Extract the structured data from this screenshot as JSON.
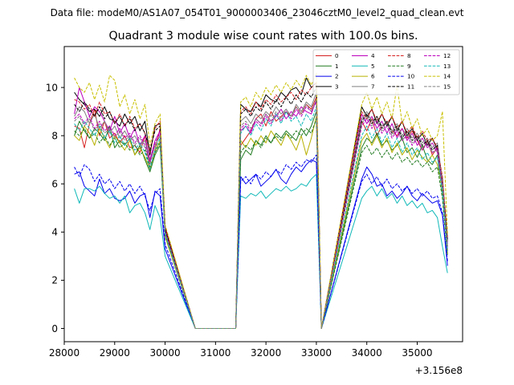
{
  "suptitle": "Data file: modeM0/AS1A07_054T01_9000003406_23046cztM0_level2_quad_clean.evt",
  "chart_data": {
    "type": "line",
    "title": "Quadrant 3 module wise count rates with 100.0s bins.",
    "xlabel": "",
    "ylabel": "",
    "x_offset_label": "+3.156e8",
    "xlim": [
      28000,
      35900
    ],
    "ylim": [
      -0.55,
      11.7
    ],
    "xticks": [
      28000,
      29000,
      30000,
      31000,
      32000,
      33000,
      34000,
      35000
    ],
    "yticks": [
      0,
      2,
      4,
      6,
      8,
      10
    ],
    "grid": false,
    "legend_location": "top-right",
    "segments": [
      {
        "start": 28200,
        "step": 100,
        "n": 19
      },
      {
        "start": 30600,
        "step": 100,
        "n": 1
      },
      {
        "start": 31400,
        "step": 100,
        "n": 18
      },
      {
        "start": 33100,
        "step": 100,
        "n": 1
      },
      {
        "start": 33900,
        "step": 100,
        "n": 18
      }
    ],
    "note": "Each series lists one value per time bin, concatenated across segments (19 + 1 + 18 + 1 + 18 = 57 bins). Values are read approximately from the plot.",
    "series": [
      {
        "name": "0",
        "color": "#d62020",
        "dash": false,
        "values": [
          8.4,
          8.3,
          7.5,
          8.5,
          9.1,
          8.0,
          8.6,
          7.9,
          8.1,
          7.7,
          8.0,
          7.5,
          7.6,
          7.3,
          8.0,
          6.6,
          7.4,
          8.3,
          4.0,
          0.0,
          0.0,
          7.6,
          7.9,
          8.2,
          8.7,
          8.9,
          8.4,
          9.0,
          8.6,
          8.8,
          9.0,
          8.8,
          9.2,
          8.9,
          9.3,
          9.1,
          9.6,
          0.0,
          0.0,
          8.6,
          8.2,
          8.7,
          8.0,
          8.4,
          8.6,
          8.2,
          8.0,
          8.3,
          7.9,
          8.2,
          7.8,
          7.4,
          7.8,
          7.2,
          7.5,
          5.8,
          3.2
        ]
      },
      {
        "name": "1",
        "color": "#207a20",
        "dash": false,
        "values": [
          8.0,
          8.6,
          8.2,
          7.9,
          8.3,
          8.1,
          7.8,
          8.4,
          7.5,
          7.8,
          7.6,
          7.9,
          7.2,
          7.6,
          7.0,
          6.5,
          7.2,
          7.6,
          4.0,
          0.0,
          0.0,
          7.0,
          7.4,
          7.2,
          7.8,
          7.6,
          8.0,
          7.7,
          8.1,
          7.9,
          8.2,
          8.0,
          7.8,
          8.3,
          8.0,
          8.4,
          9.0,
          0.0,
          0.0,
          7.5,
          7.9,
          7.7,
          8.1,
          7.6,
          7.8,
          7.4,
          7.6,
          7.9,
          7.3,
          7.5,
          7.1,
          7.6,
          7.0,
          6.8,
          7.2,
          5.6,
          3.4
        ]
      },
      {
        "name": "2",
        "color": "#0000ee",
        "dash": false,
        "values": [
          6.4,
          6.5,
          5.9,
          5.7,
          5.5,
          6.2,
          5.6,
          5.8,
          5.4,
          5.3,
          5.4,
          5.7,
          5.2,
          5.5,
          5.6,
          4.6,
          5.7,
          5.5,
          3.3,
          0.0,
          0.0,
          6.3,
          6.0,
          6.2,
          6.4,
          5.9,
          6.1,
          6.3,
          6.6,
          6.2,
          6.0,
          6.4,
          6.7,
          6.5,
          6.8,
          7.0,
          6.9,
          0.0,
          0.0,
          6.2,
          6.7,
          6.4,
          5.9,
          6.0,
          5.5,
          5.7,
          5.4,
          5.6,
          5.9,
          5.5,
          5.3,
          5.6,
          5.4,
          5.2,
          5.3,
          4.7,
          2.6
        ]
      },
      {
        "name": "3",
        "color": "#000000",
        "dash": false,
        "values": [
          9.8,
          9.5,
          9.3,
          9.0,
          9.1,
          8.8,
          9.2,
          8.7,
          8.6,
          8.4,
          8.9,
          8.5,
          8.8,
          8.2,
          8.6,
          7.2,
          8.4,
          8.5,
          4.2,
          0.0,
          0.0,
          9.3,
          9.1,
          9.0,
          9.4,
          9.2,
          9.7,
          9.5,
          9.4,
          9.8,
          9.6,
          9.9,
          10.0,
          9.7,
          10.4,
          10.0,
          10.2,
          0.0,
          0.0,
          9.2,
          8.8,
          9.1,
          8.5,
          8.9,
          8.4,
          8.8,
          8.2,
          8.6,
          8.0,
          8.3,
          7.8,
          8.1,
          7.6,
          7.9,
          7.4,
          6.2,
          3.6
        ]
      },
      {
        "name": "4",
        "color": "#bb00bb",
        "dash": false,
        "values": [
          8.9,
          10.0,
          9.4,
          8.8,
          9.2,
          9.0,
          8.6,
          8.2,
          8.8,
          8.1,
          8.5,
          7.9,
          8.3,
          7.6,
          8.0,
          7.0,
          7.8,
          8.2,
          4.1,
          0.0,
          0.0,
          8.2,
          8.4,
          8.1,
          8.7,
          8.5,
          8.9,
          8.6,
          8.8,
          9.1,
          8.7,
          9.0,
          8.8,
          9.2,
          9.0,
          8.9,
          9.5,
          0.0,
          0.0,
          8.9,
          8.5,
          8.8,
          8.3,
          8.6,
          8.1,
          8.5,
          7.9,
          8.3,
          7.8,
          8.1,
          7.6,
          7.9,
          7.5,
          7.7,
          7.3,
          6.0,
          3.3
        ]
      },
      {
        "name": "5",
        "color": "#10b8b8",
        "dash": false,
        "values": [
          5.8,
          5.2,
          5.8,
          5.8,
          5.7,
          5.9,
          5.6,
          5.4,
          5.5,
          5.2,
          5.5,
          4.8,
          5.1,
          5.2,
          4.8,
          4.1,
          5.1,
          4.6,
          3.0,
          0.0,
          0.0,
          5.5,
          5.4,
          5.6,
          5.5,
          5.7,
          5.4,
          5.6,
          5.8,
          5.7,
          5.9,
          5.7,
          5.8,
          6.0,
          5.9,
          6.2,
          6.4,
          0.0,
          0.0,
          5.4,
          5.7,
          5.9,
          5.5,
          5.8,
          5.4,
          5.6,
          5.2,
          5.5,
          5.1,
          5.3,
          5.0,
          5.2,
          4.8,
          4.9,
          4.6,
          3.4,
          2.3
        ]
      },
      {
        "name": "6",
        "color": "#b8b000",
        "dash": false,
        "values": [
          8.0,
          7.8,
          8.4,
          8.1,
          7.6,
          8.3,
          7.9,
          7.5,
          8.0,
          7.7,
          7.4,
          7.8,
          7.2,
          7.5,
          7.1,
          6.6,
          7.3,
          7.8,
          3.8,
          0.0,
          0.0,
          7.8,
          7.5,
          7.9,
          7.6,
          8.0,
          7.7,
          8.2,
          7.9,
          7.6,
          8.1,
          7.8,
          7.4,
          8.0,
          7.2,
          7.9,
          8.8,
          0.0,
          0.0,
          7.8,
          8.1,
          7.6,
          8.0,
          7.5,
          7.9,
          7.3,
          7.7,
          7.2,
          7.5,
          7.0,
          7.4,
          7.1,
          6.9,
          7.2,
          6.8,
          5.8,
          3.1
        ]
      },
      {
        "name": "7",
        "color": "#808080",
        "dash": false,
        "values": [
          8.8,
          9.2,
          9.0,
          8.5,
          8.9,
          8.3,
          8.6,
          8.1,
          8.4,
          7.9,
          8.2,
          7.8,
          8.0,
          7.6,
          7.8,
          6.9,
          7.6,
          8.0,
          4.0,
          0.0,
          0.0,
          8.6,
          8.8,
          8.5,
          8.9,
          8.7,
          9.0,
          8.8,
          9.2,
          8.9,
          9.1,
          8.8,
          9.3,
          9.0,
          9.4,
          9.2,
          9.8,
          0.0,
          0.0,
          8.7,
          9.0,
          8.6,
          8.8,
          8.4,
          8.6,
          8.2,
          8.5,
          8.0,
          8.3,
          7.9,
          8.1,
          7.7,
          7.9,
          7.5,
          7.7,
          6.1,
          3.5
        ]
      },
      {
        "name": "8",
        "color": "#d62020",
        "dash": true,
        "values": [
          9.5,
          9.4,
          9.1,
          9.3,
          8.8,
          9.4,
          8.9,
          9.0,
          8.5,
          8.9,
          8.4,
          8.8,
          8.3,
          8.5,
          8.1,
          7.3,
          8.3,
          8.6,
          4.2,
          0.0,
          0.0,
          9.0,
          9.2,
          8.9,
          9.4,
          9.1,
          9.5,
          9.3,
          9.7,
          9.4,
          9.6,
          9.8,
          9.5,
          9.9,
          9.7,
          10.0,
          10.2,
          0.0,
          0.0,
          9.0,
          8.7,
          9.1,
          8.6,
          8.9,
          8.5,
          8.8,
          8.3,
          8.6,
          8.1,
          8.4,
          7.9,
          8.2,
          7.8,
          7.9,
          7.5,
          6.3,
          3.8
        ]
      },
      {
        "name": "9",
        "color": "#207a20",
        "dash": true,
        "values": [
          8.2,
          8.0,
          8.3,
          7.9,
          8.1,
          7.7,
          8.0,
          7.6,
          7.9,
          7.5,
          7.7,
          7.4,
          7.6,
          7.2,
          7.4,
          6.7,
          7.3,
          7.7,
          3.9,
          0.0,
          0.0,
          7.3,
          7.6,
          7.4,
          7.8,
          7.5,
          7.9,
          7.7,
          8.0,
          7.8,
          8.1,
          7.9,
          8.2,
          8.0,
          8.3,
          8.1,
          8.7,
          0.0,
          0.0,
          7.3,
          7.6,
          7.2,
          7.5,
          7.1,
          7.4,
          7.0,
          7.3,
          6.9,
          7.1,
          6.8,
          7.0,
          6.7,
          6.9,
          6.5,
          6.7,
          5.4,
          3.0
        ]
      },
      {
        "name": "10",
        "color": "#0000ee",
        "dash": true,
        "values": [
          6.7,
          6.3,
          6.8,
          6.6,
          6.1,
          6.4,
          6.0,
          6.2,
          5.8,
          6.1,
          5.7,
          6.0,
          5.6,
          5.9,
          5.5,
          4.9,
          5.6,
          5.8,
          3.5,
          0.0,
          0.0,
          6.1,
          6.3,
          6.0,
          6.4,
          6.2,
          6.5,
          6.3,
          6.6,
          6.4,
          6.8,
          6.6,
          6.9,
          6.7,
          7.0,
          6.9,
          7.2,
          0.0,
          0.0,
          6.1,
          6.4,
          6.0,
          6.3,
          5.9,
          6.2,
          5.8,
          6.0,
          5.7,
          5.9,
          5.6,
          5.8,
          5.5,
          5.7,
          5.4,
          5.5,
          4.8,
          2.8
        ]
      },
      {
        "name": "11",
        "color": "#000000",
        "dash": true,
        "values": [
          9.3,
          9.0,
          9.4,
          9.1,
          8.8,
          9.2,
          8.7,
          9.0,
          8.5,
          8.8,
          8.4,
          8.7,
          8.2,
          8.5,
          8.1,
          7.4,
          8.2,
          8.4,
          4.1,
          0.0,
          0.0,
          8.9,
          9.1,
          8.8,
          9.2,
          9.0,
          9.4,
          9.1,
          9.5,
          9.2,
          9.6,
          9.3,
          9.7,
          9.4,
          9.8,
          9.6,
          10.0,
          0.0,
          0.0,
          8.6,
          8.9,
          8.5,
          8.8,
          8.3,
          8.6,
          8.1,
          8.4,
          7.9,
          8.2,
          7.8,
          8.0,
          7.6,
          7.8,
          7.4,
          7.6,
          6.0,
          3.7
        ]
      },
      {
        "name": "12",
        "color": "#bb00bb",
        "dash": true,
        "values": [
          8.7,
          8.9,
          8.5,
          8.8,
          8.3,
          8.6,
          8.2,
          8.4,
          8.0,
          8.3,
          7.9,
          8.1,
          7.7,
          8.0,
          7.6,
          6.9,
          7.7,
          8.1,
          4.0,
          0.0,
          0.0,
          8.3,
          8.5,
          8.2,
          8.6,
          8.4,
          8.8,
          8.5,
          8.9,
          8.6,
          9.0,
          8.7,
          9.1,
          8.8,
          9.2,
          9.0,
          9.4,
          0.0,
          0.0,
          8.4,
          8.7,
          8.3,
          8.6,
          8.1,
          8.4,
          7.9,
          8.2,
          7.8,
          8.0,
          7.6,
          7.9,
          7.4,
          7.7,
          7.3,
          7.5,
          5.9,
          3.4
        ]
      },
      {
        "name": "13",
        "color": "#10b8b8",
        "dash": true,
        "values": [
          8.5,
          8.2,
          8.6,
          8.3,
          8.0,
          8.4,
          7.9,
          8.2,
          7.7,
          8.0,
          7.6,
          7.9,
          7.4,
          7.7,
          7.3,
          6.6,
          7.4,
          7.9,
          3.9,
          0.0,
          0.0,
          8.1,
          8.4,
          8.0,
          8.5,
          8.2,
          8.7,
          8.4,
          8.9,
          8.5,
          9.0,
          8.6,
          8.8,
          8.4,
          8.9,
          8.6,
          9.2,
          0.0,
          0.0,
          8.0,
          8.4,
          7.9,
          8.3,
          7.7,
          8.1,
          7.5,
          7.9,
          7.3,
          7.7,
          7.2,
          7.5,
          7.0,
          7.3,
          6.9,
          7.1,
          5.7,
          3.2
        ]
      },
      {
        "name": "14",
        "color": "#c8c000",
        "dash": true,
        "values": [
          10.4,
          10.0,
          9.8,
          10.2,
          9.5,
          10.1,
          9.4,
          10.5,
          10.3,
          9.2,
          9.7,
          8.9,
          9.5,
          8.7,
          9.3,
          7.6,
          8.5,
          8.9,
          4.3,
          0.0,
          0.0,
          9.4,
          9.6,
          9.2,
          9.8,
          9.5,
          10.0,
          9.7,
          10.1,
          9.8,
          10.2,
          9.9,
          10.3,
          10.0,
          10.5,
          10.1,
          10.6,
          0.0,
          0.0,
          9.3,
          9.8,
          9.1,
          9.6,
          8.9,
          9.4,
          8.7,
          10.1,
          8.5,
          9.0,
          8.3,
          8.7,
          8.0,
          8.3,
          7.8,
          8.0,
          9.0,
          3.9
        ]
      },
      {
        "name": "15",
        "color": "#808080",
        "dash": true,
        "values": [
          8.6,
          8.8,
          8.4,
          8.7,
          8.2,
          8.5,
          8.1,
          8.3,
          7.9,
          8.2,
          7.8,
          8.0,
          7.6,
          7.9,
          7.5,
          6.8,
          7.6,
          8.0,
          4.0,
          0.0,
          0.0,
          8.4,
          8.6,
          8.3,
          8.7,
          8.5,
          8.9,
          8.6,
          9.0,
          8.7,
          9.1,
          8.8,
          9.2,
          8.9,
          9.3,
          9.0,
          9.5,
          0.0,
          0.0,
          8.5,
          8.8,
          8.4,
          8.7,
          8.2,
          8.5,
          8.0,
          8.3,
          7.8,
          8.1,
          7.7,
          7.9,
          7.5,
          7.7,
          7.3,
          7.4,
          6.1,
          3.4
        ]
      }
    ]
  }
}
